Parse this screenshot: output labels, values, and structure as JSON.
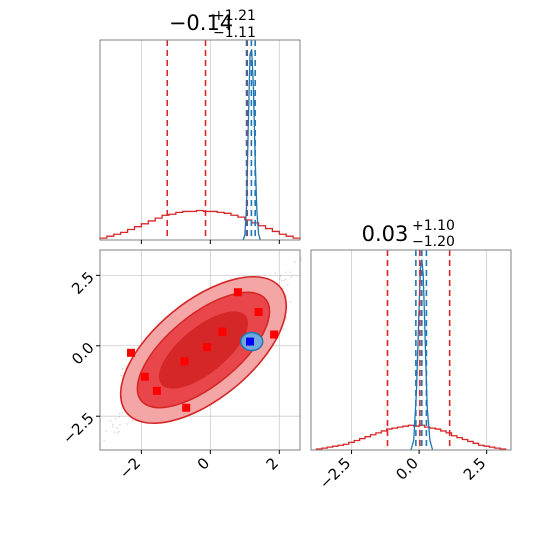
{
  "chart_data": [
    {
      "type": "histogram",
      "panel": "top-left marginal (parameter 1)",
      "title_main": "−0.14",
      "title_sup": "+1.21",
      "title_sub": "−1.11",
      "xlim": [
        -3.2,
        2.6
      ],
      "grid": true,
      "series": [
        {
          "color": "#d62728",
          "style": "step",
          "bin_centers": [
            -3.1,
            -2.9,
            -2.7,
            -2.5,
            -2.3,
            -2.1,
            -1.9,
            -1.7,
            -1.5,
            -1.3,
            -1.1,
            -0.9,
            -0.7,
            -0.5,
            -0.3,
            -0.1,
            0.1,
            0.3,
            0.5,
            0.7,
            0.9,
            1.1,
            1.3,
            1.5,
            1.7,
            1.9,
            2.1,
            2.3,
            2.5
          ],
          "density": [
            0.02,
            0.04,
            0.06,
            0.08,
            0.11,
            0.14,
            0.17,
            0.2,
            0.23,
            0.26,
            0.27,
            0.29,
            0.3,
            0.3,
            0.31,
            0.3,
            0.3,
            0.29,
            0.28,
            0.26,
            0.24,
            0.21,
            0.18,
            0.15,
            0.12,
            0.09,
            0.06,
            0.04,
            0.02
          ]
        },
        {
          "color": "#1f77b4",
          "style": "line",
          "x": [
            0.95,
            1.0,
            1.05,
            1.1,
            1.15,
            1.2,
            1.25,
            1.3,
            1.35,
            1.4,
            1.45
          ],
          "density": [
            0.0,
            0.05,
            0.35,
            1.2,
            1.95,
            2.0,
            1.6,
            0.85,
            0.3,
            0.06,
            0.0
          ]
        }
      ],
      "quantile_lines": [
        {
          "color": "#d62728",
          "x": [
            -1.25,
            -0.14,
            1.07
          ]
        },
        {
          "color": "#1f77b4",
          "x": [
            1.05,
            1.19,
            1.3
          ]
        }
      ]
    },
    {
      "type": "contour-scatter",
      "panel": "bottom-left 2D (parameter 1 vs parameter 2)",
      "xlim": [
        -3.2,
        2.6
      ],
      "ylim": [
        -3.7,
        3.4
      ],
      "xticks": [
        -2,
        0,
        2
      ],
      "xticklabels": [
        "−2",
        "0",
        "2"
      ],
      "yticks": [
        -2.5,
        0.0,
        2.5
      ],
      "yticklabels": [
        "−2.5",
        "0.0",
        "2.5"
      ],
      "grid": true,
      "red_squares": [
        [
          0.8,
          1.9
        ],
        [
          1.4,
          1.2
        ],
        [
          -1.9,
          -1.1
        ],
        [
          1.85,
          0.4
        ],
        [
          0.35,
          0.5
        ],
        [
          -2.3,
          -0.25
        ],
        [
          -0.75,
          -0.55
        ],
        [
          -1.55,
          -1.6
        ],
        [
          -0.7,
          -2.2
        ],
        [
          -0.1,
          -0.05
        ]
      ],
      "blue_square": [
        1.15,
        0.15
      ],
      "blue_blob_center": [
        1.2,
        0.15
      ]
    },
    {
      "type": "histogram",
      "panel": "bottom-right marginal (parameter 2)",
      "title_main": "0.03",
      "title_sup": "+1.10",
      "title_sub": "−1.20",
      "xlim": [
        -4.0,
        3.4
      ],
      "xticks": [
        -2.5,
        0.0,
        2.5
      ],
      "xticklabels": [
        "−2.5",
        "0.0",
        "2.5"
      ],
      "grid": true,
      "series": [
        {
          "color": "#d62728",
          "style": "step",
          "bin_centers": [
            -3.7,
            -3.5,
            -3.3,
            -3.1,
            -2.9,
            -2.7,
            -2.5,
            -2.3,
            -2.1,
            -1.9,
            -1.7,
            -1.5,
            -1.3,
            -1.1,
            -0.9,
            -0.7,
            -0.5,
            -0.3,
            -0.1,
            0.1,
            0.3,
            0.5,
            0.7,
            0.9,
            1.1,
            1.3,
            1.5,
            1.7,
            1.9,
            2.1,
            2.3,
            2.5,
            2.7,
            2.9,
            3.1
          ],
          "density": [
            0.01,
            0.02,
            0.03,
            0.04,
            0.05,
            0.06,
            0.08,
            0.1,
            0.12,
            0.14,
            0.16,
            0.18,
            0.2,
            0.22,
            0.23,
            0.24,
            0.25,
            0.26,
            0.25,
            0.26,
            0.24,
            0.23,
            0.22,
            0.2,
            0.18,
            0.15,
            0.13,
            0.11,
            0.09,
            0.07,
            0.05,
            0.04,
            0.03,
            0.02,
            0.01
          ]
        },
        {
          "color": "#1f77b4",
          "style": "line",
          "x": [
            -0.3,
            -0.2,
            -0.1,
            0.0,
            0.05,
            0.1,
            0.15,
            0.2,
            0.25,
            0.3,
            0.4,
            0.5
          ],
          "density": [
            0.0,
            0.1,
            0.6,
            1.5,
            1.9,
            2.0,
            1.85,
            1.4,
            0.9,
            0.45,
            0.1,
            0.0
          ]
        }
      ],
      "quantile_lines": [
        {
          "color": "#d62728",
          "x": [
            -1.17,
            0.03,
            1.13
          ]
        },
        {
          "color": "#1f77b4",
          "x": [
            -0.12,
            0.1,
            0.27
          ]
        }
      ]
    }
  ]
}
